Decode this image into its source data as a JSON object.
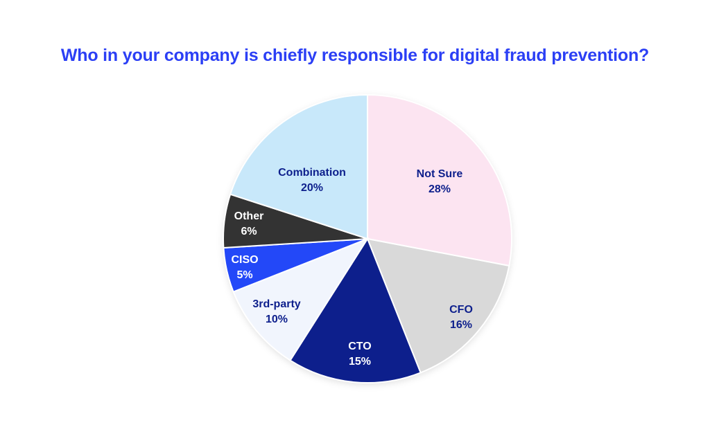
{
  "chart_data": {
    "type": "pie",
    "title": "Who in your company is chiefly responsible for digital fraud prevention?",
    "start_angle": "12 o'clock",
    "direction": "clockwise",
    "slices": [
      {
        "label": "Not Sure",
        "value": 28,
        "value_label": "28%",
        "color": "#fce4f1",
        "text_color": "#0d1f8c"
      },
      {
        "label": "CFO",
        "value": 16,
        "value_label": "16%",
        "color": "#d9d9d9",
        "text_color": "#0d1f8c"
      },
      {
        "label": "CTO",
        "value": 15,
        "value_label": "15%",
        "color": "#0d1f8c",
        "text_color": "#ffffff"
      },
      {
        "label": "3rd-party",
        "value": 10,
        "value_label": "10%",
        "color": "#f1f5fd",
        "text_color": "#0d1f8c"
      },
      {
        "label": "CISO",
        "value": 5,
        "value_label": "5%",
        "color": "#2348f8",
        "text_color": "#ffffff"
      },
      {
        "label": "Other",
        "value": 6,
        "value_label": "6%",
        "color": "#333333",
        "text_color": "#ffffff"
      },
      {
        "label": "Combination",
        "value": 20,
        "value_label": "20%",
        "color": "#c8e8fa",
        "text_color": "#0d1f8c"
      }
    ]
  }
}
